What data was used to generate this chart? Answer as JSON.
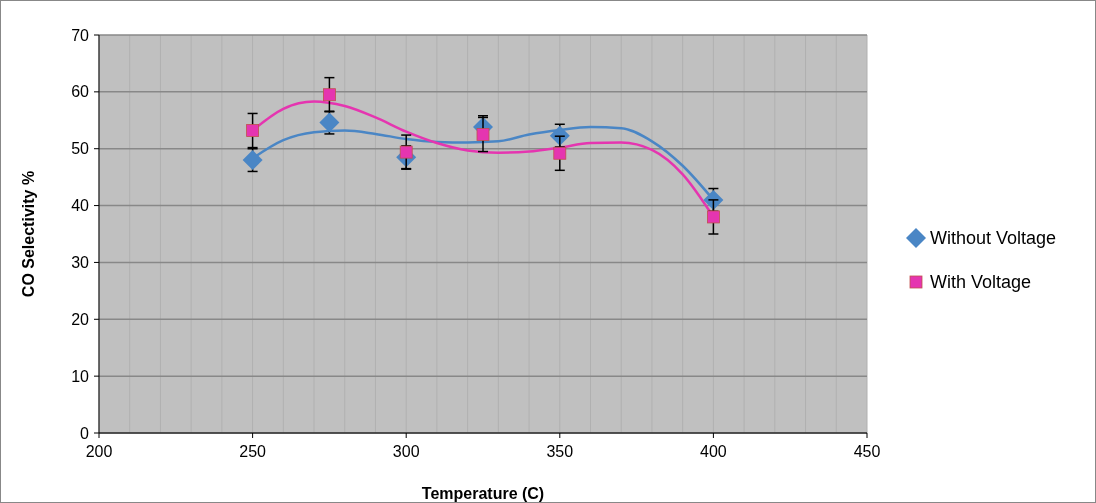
{
  "chart_data": {
    "type": "scatter",
    "xlabel": "Temperature (C)",
    "ylabel": "CO  Selectivity %",
    "xlim": [
      200,
      450
    ],
    "xticks": [
      200,
      250,
      300,
      350,
      400,
      450
    ],
    "ylim": [
      0,
      70
    ],
    "yticks": [
      0,
      10,
      20,
      30,
      40,
      50,
      60,
      70
    ],
    "grid": true,
    "legend": "right",
    "series": [
      {
        "name": "Without Voltage",
        "color": "#4a86c5",
        "marker": "diamond",
        "x": [
          250,
          275,
          300,
          325,
          350,
          400
        ],
        "values": [
          48,
          54.6,
          48.5,
          53.8,
          52.3,
          41
        ],
        "errors": [
          2,
          2,
          2,
          2,
          2,
          2
        ]
      },
      {
        "name": "With Voltage",
        "color": "#e535b0",
        "marker": "square",
        "x": [
          250,
          275,
          300,
          325,
          350,
          400
        ],
        "values": [
          53.2,
          59.5,
          49.4,
          52.5,
          49.2,
          38
        ],
        "errors": [
          3,
          3,
          3,
          3,
          3,
          3
        ]
      },
      {
        "type": "line",
        "color": "#4a86c5",
        "marker": "none",
        "x": [
          250,
          260,
          270,
          280,
          290,
          300,
          310,
          320,
          330,
          340,
          350,
          360,
          370,
          380,
          390,
          400
        ],
        "values": [
          48.3,
          51.5,
          52.9,
          53.2,
          52.6,
          51.7,
          51.2,
          51.1,
          51.3,
          52.5,
          53.3,
          53.8,
          53.6,
          51.3,
          47,
          41
        ]
      },
      {
        "type": "line",
        "color": "#e535b0",
        "marker": "none",
        "x": [
          250,
          260,
          265,
          270,
          280,
          290,
          300,
          310,
          320,
          330,
          340,
          350,
          360,
          370,
          380,
          390,
          400
        ],
        "values": [
          53.2,
          57,
          58,
          58.3,
          57.5,
          55.5,
          53,
          51,
          49.7,
          49.3,
          49.5,
          50.2,
          51,
          51.1,
          49.8,
          45.5,
          38
        ]
      }
    ]
  }
}
